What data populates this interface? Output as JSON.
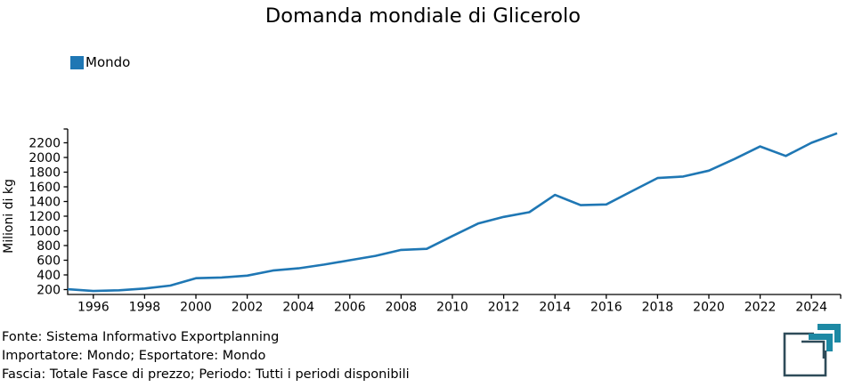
{
  "chart": {
    "title": "Domanda mondiale di Glicerolo",
    "legend": {
      "label": "Mondo",
      "swatch_color": "#1f77b4"
    }
  },
  "chart_data": {
    "type": "line",
    "title": "Domanda mondiale di Glicerolo",
    "xlabel": "",
    "ylabel": "Milioni di kg",
    "legend_entries": [
      "Mondo"
    ],
    "legend_position": "top-left",
    "grid": false,
    "line_color": "#1f77b4",
    "axis_color": "#000000",
    "xlim": [
      1995,
      2025
    ],
    "ylim": [
      70,
      2400
    ],
    "xticks": [
      1996,
      1998,
      2000,
      2002,
      2004,
      2006,
      2008,
      2010,
      2012,
      2014,
      2016,
      2018,
      2020,
      2022,
      2024
    ],
    "yticks": [
      200,
      400,
      600,
      800,
      1000,
      1200,
      1400,
      1600,
      1800,
      2000,
      2200
    ],
    "series": [
      {
        "name": "Mondo",
        "x": [
          1995,
          1996,
          1997,
          1998,
          1999,
          2000,
          2001,
          2002,
          2003,
          2004,
          2005,
          2006,
          2007,
          2008,
          2009,
          2010,
          2011,
          2012,
          2013,
          2014,
          2015,
          2016,
          2017,
          2018,
          2019,
          2020,
          2021,
          2022,
          2023,
          2024,
          2025
        ],
        "values": [
          205,
          180,
          190,
          215,
          255,
          355,
          365,
          390,
          460,
          490,
          540,
          600,
          660,
          740,
          755,
          930,
          1100,
          1190,
          1255,
          1490,
          1350,
          1360,
          1540,
          1720,
          1740,
          1820,
          1980,
          2150,
          2020,
          2200,
          2330
        ]
      }
    ]
  },
  "footer": {
    "line1": "Fonte: Sistema Informativo Exportplanning",
    "line2": "Importatore: Mondo; Esportatore: Mondo",
    "line3": "Fascia: Totale Fasce di prezzo; Periodo: Tutti i periodi disponibili"
  },
  "logo": {
    "name": "ExportPlanning",
    "teal_color": "#1d89a4",
    "dark_color": "#2e4b59"
  }
}
